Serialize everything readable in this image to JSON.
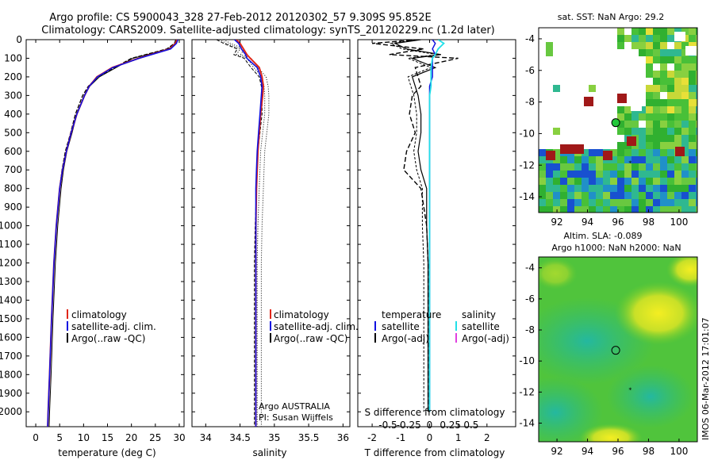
{
  "title_line1": "Argo profile: CS 5900043_328 27-Feb-2012 20120302_57 9.309S 95.852E",
  "title_line2": "Climatology: CARS2009. Satellite-adjusted climatology: synTS_20120229.nc (1.2d later)",
  "side_stamp": "IMOS 06-Mar-2012 17:01:07",
  "colors": {
    "clim": "#e0271a",
    "sat": "#1010e0",
    "argo": "#000000",
    "sat_s": "#22e0e8",
    "argo_s_adj": "#e040e0"
  },
  "depth_ticks": [
    "0",
    "100",
    "200",
    "300",
    "400",
    "500",
    "600",
    "700",
    "800",
    "900",
    "1000",
    "1100",
    "1200",
    "1300",
    "1400",
    "1500",
    "1600",
    "1700",
    "1800",
    "1900",
    "2000"
  ],
  "chart_data": [
    {
      "type": "line",
      "id": "temperature",
      "xlabel": "temperature (deg C)",
      "xlim": [
        -2,
        31
      ],
      "ylim": [
        2080,
        0
      ],
      "xticks": [
        "0",
        "5",
        "10",
        "15",
        "20",
        "25",
        "30"
      ],
      "legend": [
        "climatology",
        "satellite-adj. clim.",
        "Argo(..raw -QC)"
      ],
      "depth": [
        0,
        20,
        50,
        80,
        100,
        150,
        200,
        250,
        300,
        400,
        500,
        600,
        700,
        800,
        1000,
        1200,
        1500,
        1800,
        2000,
        2080
      ],
      "series": [
        {
          "name": "climatology",
          "values": [
            29.5,
            29.2,
            28.0,
            24.0,
            21.5,
            16.0,
            12.8,
            11.2,
            10.2,
            8.6,
            7.4,
            6.4,
            5.6,
            5.0,
            4.3,
            3.8,
            3.3,
            2.9,
            2.6,
            2.5
          ]
        },
        {
          "name": "satellite-adj. clim.",
          "values": [
            29.7,
            29.4,
            28.2,
            24.2,
            21.6,
            16.1,
            12.9,
            11.2,
            10.2,
            8.6,
            7.4,
            6.4,
            5.6,
            5.0,
            4.3,
            3.8,
            3.3,
            2.9,
            2.6,
            2.5
          ]
        },
        {
          "name": "Argo(..raw -QC)",
          "values": [
            29.3,
            29.0,
            27.4,
            23.0,
            20.0,
            16.5,
            13.0,
            11.0,
            9.8,
            8.3,
            7.3,
            6.2,
            5.5,
            5.0,
            4.3,
            3.8,
            3.3,
            2.9,
            2.6,
            2.5
          ]
        }
      ]
    },
    {
      "type": "line",
      "id": "salinity",
      "xlabel": "salinity",
      "xlim": [
        33.8,
        36.1
      ],
      "ylim": [
        2080,
        0
      ],
      "xticks": [
        "34",
        "34.5",
        "35",
        "35.5",
        "36"
      ],
      "legend": [
        "climatology",
        "satellite-adj. clim.",
        "Argo(..raw -QC)"
      ],
      "annotation1": "Argo AUSTRALIA",
      "annotation2": "PI: Susan Wijffels",
      "depth": [
        0,
        20,
        50,
        80,
        100,
        150,
        200,
        250,
        300,
        400,
        500,
        600,
        700,
        800,
        1000,
        1200,
        1500,
        1800,
        2000,
        2080
      ],
      "series": [
        {
          "name": "climatology",
          "values": [
            34.45,
            34.5,
            34.55,
            34.6,
            34.65,
            34.78,
            34.82,
            34.84,
            34.83,
            34.8,
            34.78,
            34.76,
            34.75,
            34.74,
            34.73,
            34.73,
            34.73,
            34.73,
            34.73,
            34.73
          ]
        },
        {
          "name": "satellite-adj. clim.",
          "values": [
            34.42,
            34.48,
            34.52,
            34.58,
            34.6,
            34.75,
            34.8,
            34.82,
            34.81,
            34.79,
            34.77,
            34.75,
            34.74,
            34.73,
            34.73,
            34.73,
            34.73,
            34.73,
            34.73,
            34.73
          ]
        },
        {
          "name": "Argo(..raw -QC)",
          "values": [
            34.2,
            34.3,
            34.5,
            34.45,
            34.6,
            34.7,
            34.82,
            34.85,
            34.86,
            34.86,
            34.83,
            34.8,
            34.79,
            34.78,
            34.76,
            34.75,
            34.75,
            34.75,
            34.75,
            34.75
          ]
        }
      ]
    },
    {
      "type": "line",
      "id": "difference",
      "xlabel": "T difference from climatology",
      "xlabel_top": "S difference from climatology",
      "xlim": [
        -2.5,
        3
      ],
      "ylim": [
        2080,
        0
      ],
      "xticks": [
        "-2",
        "-1",
        "0",
        "1",
        "2"
      ],
      "xticks_top": [
        "-0.5",
        "-0.25",
        "0",
        "0.25",
        "0.5"
      ],
      "legend_t_title": "temperature",
      "legend_s_title": "salinity",
      "legend": [
        "satellite",
        "Argo(-adj)",
        "satellite",
        "Argo(-adj)"
      ],
      "depth": [
        0,
        20,
        50,
        80,
        100,
        150,
        200,
        250,
        300,
        400,
        500,
        600,
        700,
        800,
        1000,
        1200,
        1500,
        1800,
        2000
      ],
      "series": [
        {
          "name": "T satellite",
          "values": [
            0.1,
            0.2,
            0.1,
            0.2,
            0.1,
            0.1,
            0.1,
            0.0,
            0.0,
            0.0,
            0.0,
            0.0,
            0.0,
            0.0,
            0.0,
            0.0,
            0.0,
            0.0,
            0.0
          ]
        },
        {
          "name": "T Argo(-adj)",
          "values": [
            -0.3,
            -1.2,
            -0.8,
            0.4,
            -0.6,
            0.2,
            -0.6,
            -0.5,
            -0.4,
            -0.3,
            -0.3,
            -0.4,
            -0.3,
            -0.1,
            -0.1,
            -0.05,
            -0.05,
            -0.05,
            -0.05
          ]
        },
        {
          "name": "S satellite",
          "values": [
            0.3,
            0.5,
            0.3,
            0.2,
            0.1,
            0.05,
            0.05,
            0.05,
            0.0,
            0.0,
            0.0,
            0.0,
            0.0,
            0.0,
            0.0,
            0.0,
            0.0,
            0.0,
            0.0
          ]
        },
        {
          "name": "S Argo(-adj)",
          "values": [
            -0.4,
            -2.0,
            -0.2,
            -1.4,
            1.0,
            -0.5,
            -0.4,
            -0.3,
            -0.6,
            -0.7,
            -0.5,
            -0.8,
            -0.9,
            -0.3,
            -0.1,
            -0.05,
            -0.05,
            -0.05,
            -0.05
          ]
        }
      ]
    },
    {
      "type": "heatmap",
      "id": "sst_map",
      "title": "sat. SST: NaN Argo: 29.2",
      "xlim": [
        90.8,
        101.2
      ],
      "ylim": [
        -15,
        -3.3
      ],
      "xticks": [
        "92",
        "94",
        "96",
        "98",
        "100"
      ],
      "yticks": [
        "-4",
        "-6",
        "-8",
        "-10",
        "-12",
        "-14"
      ],
      "argo_position": {
        "lon": 95.85,
        "lat": -9.31
      }
    },
    {
      "type": "heatmap",
      "id": "sla_map",
      "title": "Altim. SLA: -0.089",
      "subtitle": "Argo h1000: NaN h2000: NaN",
      "xlim": [
        90.8,
        101.2
      ],
      "ylim": [
        -15.2,
        -3.3
      ],
      "xticks": [
        "92",
        "94",
        "96",
        "98",
        "100"
      ],
      "yticks": [
        "-4",
        "-6",
        "-8",
        "-10",
        "-12",
        "-14"
      ],
      "argo_position": {
        "lon": 95.85,
        "lat": -9.31
      }
    }
  ]
}
